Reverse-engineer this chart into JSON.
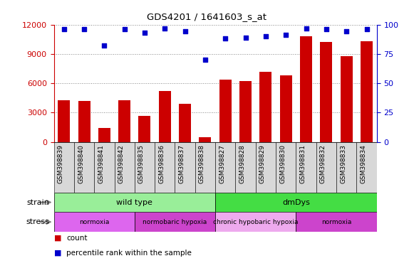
{
  "title": "GDS4201 / 1641603_s_at",
  "samples": [
    "GSM398839",
    "GSM398840",
    "GSM398841",
    "GSM398842",
    "GSM398835",
    "GSM398836",
    "GSM398837",
    "GSM398838",
    "GSM398827",
    "GSM398828",
    "GSM398829",
    "GSM398830",
    "GSM398831",
    "GSM398832",
    "GSM398833",
    "GSM398834"
  ],
  "counts": [
    4300,
    4200,
    1400,
    4300,
    2700,
    5200,
    3900,
    500,
    6400,
    6200,
    7200,
    6800,
    10800,
    10200,
    8800,
    10300
  ],
  "percentiles": [
    96,
    96,
    82,
    96,
    93,
    97,
    94,
    70,
    88,
    89,
    90,
    91,
    97,
    96,
    94,
    96
  ],
  "bar_color": "#cc0000",
  "dot_color": "#0000cc",
  "ylim_left": [
    0,
    12000
  ],
  "ylim_right": [
    0,
    100
  ],
  "yticks_left": [
    0,
    3000,
    6000,
    9000,
    12000
  ],
  "yticks_right": [
    0,
    25,
    50,
    75,
    100
  ],
  "strain_groups": [
    {
      "label": "wild type",
      "start": 0,
      "end": 8,
      "color": "#99ee99"
    },
    {
      "label": "dmDys",
      "start": 8,
      "end": 16,
      "color": "#44dd44"
    }
  ],
  "stress_groups": [
    {
      "label": "normoxia",
      "start": 0,
      "end": 4,
      "color": "#dd66ee"
    },
    {
      "label": "normobaric hypoxia",
      "start": 4,
      "end": 8,
      "color": "#cc44cc"
    },
    {
      "label": "chronic hypobaric hypoxia",
      "start": 8,
      "end": 12,
      "color": "#eeaaee"
    },
    {
      "label": "normoxia",
      "start": 12,
      "end": 16,
      "color": "#cc44cc"
    }
  ],
  "grid_color": "#888888",
  "tick_label_color_left": "#cc0000",
  "tick_label_color_right": "#0000cc",
  "xticklabel_bg": "#dddddd"
}
